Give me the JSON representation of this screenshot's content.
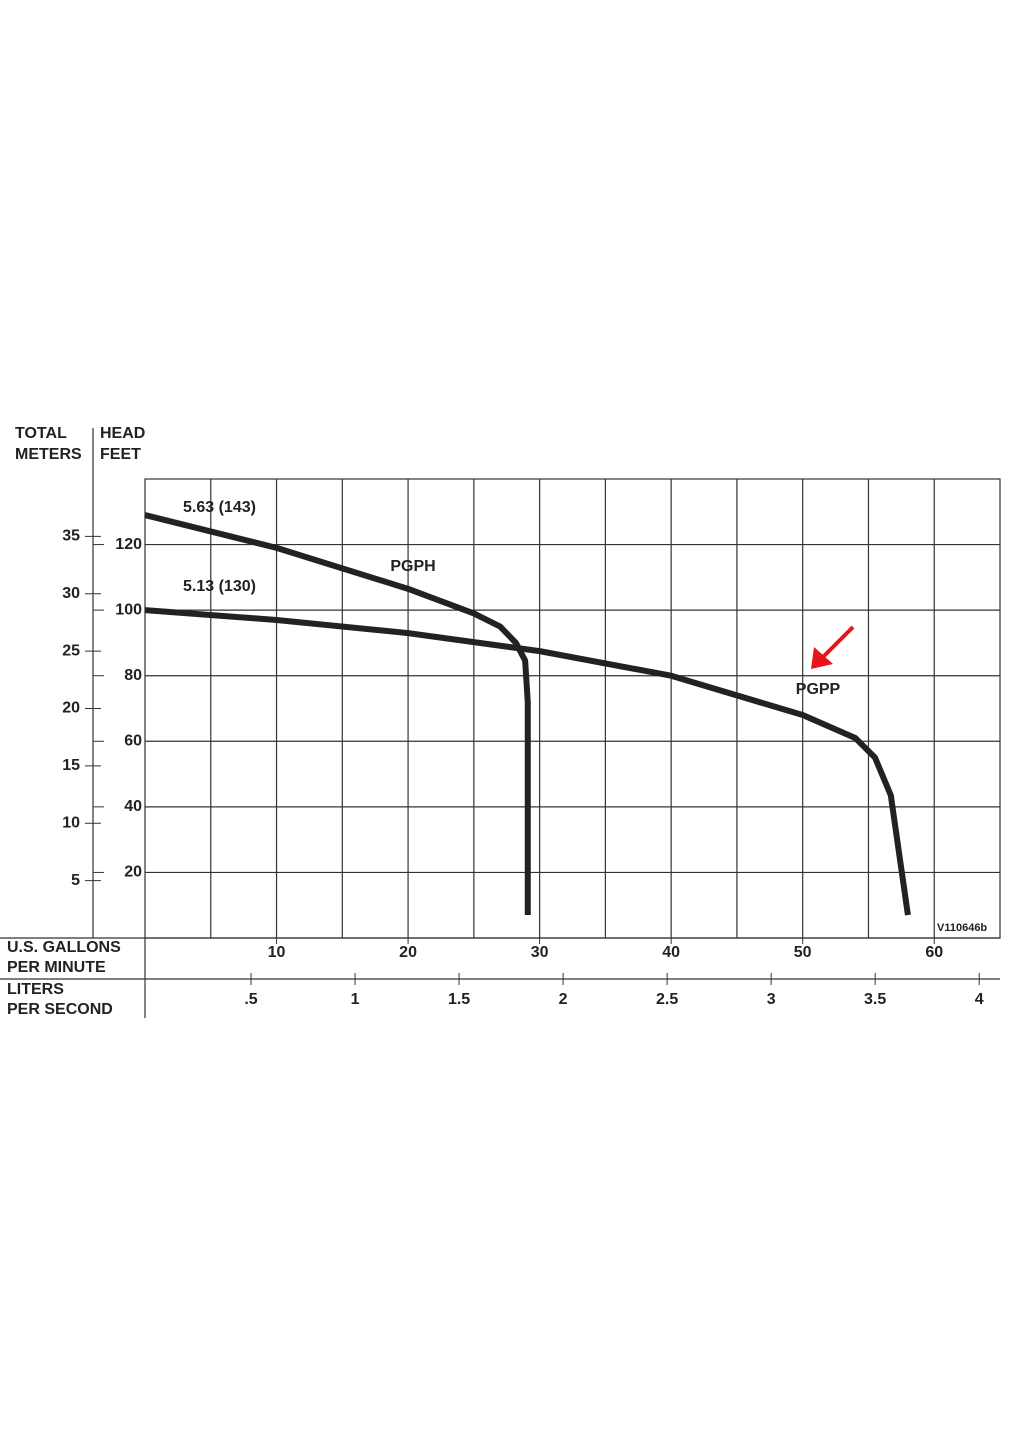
{
  "chart_data": {
    "type": "line",
    "y2_label": [
      "TOTAL",
      "METERS"
    ],
    "y_label": [
      "HEAD",
      "FEET"
    ],
    "x_label": [
      "U.S. GALLONS",
      "PER MINUTE"
    ],
    "x2_label": [
      "LITERS",
      "PER SECOND"
    ],
    "xlim": [
      0,
      65
    ],
    "xticks": [
      10,
      20,
      30,
      40,
      50,
      60
    ],
    "xgrid": [
      5,
      10,
      15,
      20,
      25,
      30,
      35,
      40,
      45,
      50,
      55,
      60
    ],
    "ylim": [
      0,
      140
    ],
    "yticks": [
      20,
      40,
      60,
      80,
      100,
      120
    ],
    "ygrid": [
      20,
      40,
      60,
      80,
      100,
      120
    ],
    "y2lim": [
      0,
      40
    ],
    "y2ticks": [
      5,
      10,
      15,
      20,
      25,
      30,
      35
    ],
    "x2lim": [
      0,
      4.1
    ],
    "x2ticks": [
      {
        "value": 0.5,
        "label": ".5"
      },
      1,
      1.5,
      2,
      2.5,
      3,
      3.5,
      4
    ],
    "grid": true,
    "series": [
      {
        "name": "PGPH",
        "color": "#222222",
        "x": [
          0,
          10,
          20,
          25,
          27,
          28.2,
          28.9,
          29.1,
          29.1
        ],
        "values": [
          129,
          119,
          106.5,
          99,
          95,
          90,
          84.6,
          72,
          7
        ]
      },
      {
        "name": "PGPP",
        "color": "#222222",
        "x": [
          0,
          10,
          20,
          30,
          40,
          50,
          54,
          55.5,
          56.7,
          58
        ],
        "values": [
          100,
          97,
          93,
          87.5,
          80,
          68,
          61,
          55,
          43.5,
          7
        ]
      }
    ],
    "annotations": [
      "5.63 (143)",
      "5.13 (130)",
      "V110646b"
    ]
  }
}
